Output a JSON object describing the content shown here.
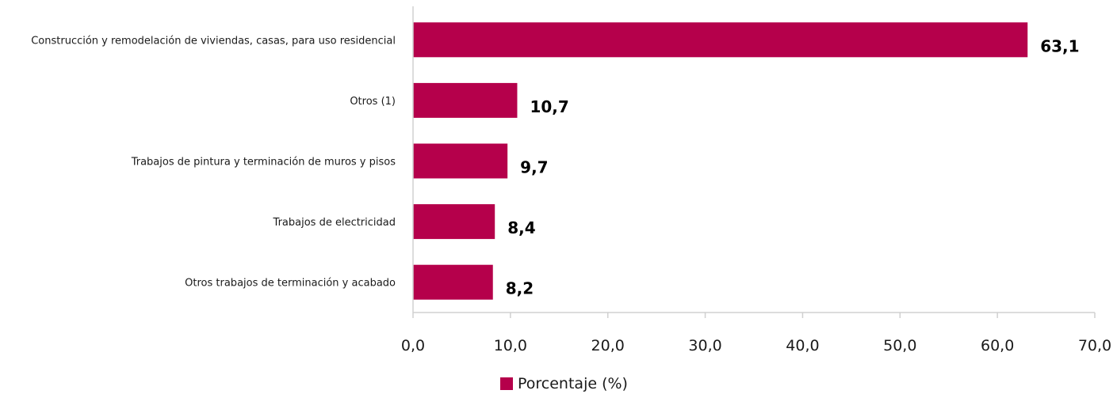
{
  "chart_data": {
    "type": "bar",
    "orientation": "horizontal",
    "categories": [
      "Construcción y remodelación de viviendas, casas, para uso residencial",
      "Otros (1)",
      "Trabajos de pintura y terminación de muros y pisos",
      "Trabajos de electricidad",
      "Otros trabajos de terminación y acabado"
    ],
    "series": [
      {
        "name": "Porcentaje (%)",
        "values": [
          63.1,
          10.7,
          9.7,
          8.4,
          8.2
        ],
        "value_labels": [
          "63,1",
          "10,7",
          "9,7",
          "8,4",
          "8,2"
        ],
        "color": "#b5004b"
      }
    ],
    "xlim": [
      0,
      70
    ],
    "xticks": [
      0,
      10,
      20,
      30,
      40,
      50,
      60,
      70
    ],
    "xtick_labels": [
      "0,0",
      "10,0",
      "20,0",
      "30,0",
      "40,0",
      "50,0",
      "60,0",
      "70,0"
    ],
    "title": "",
    "xlabel": "",
    "ylabel": "",
    "grid": false,
    "legend_position": "bottom-center",
    "axis_color": "#d0d0d0"
  }
}
